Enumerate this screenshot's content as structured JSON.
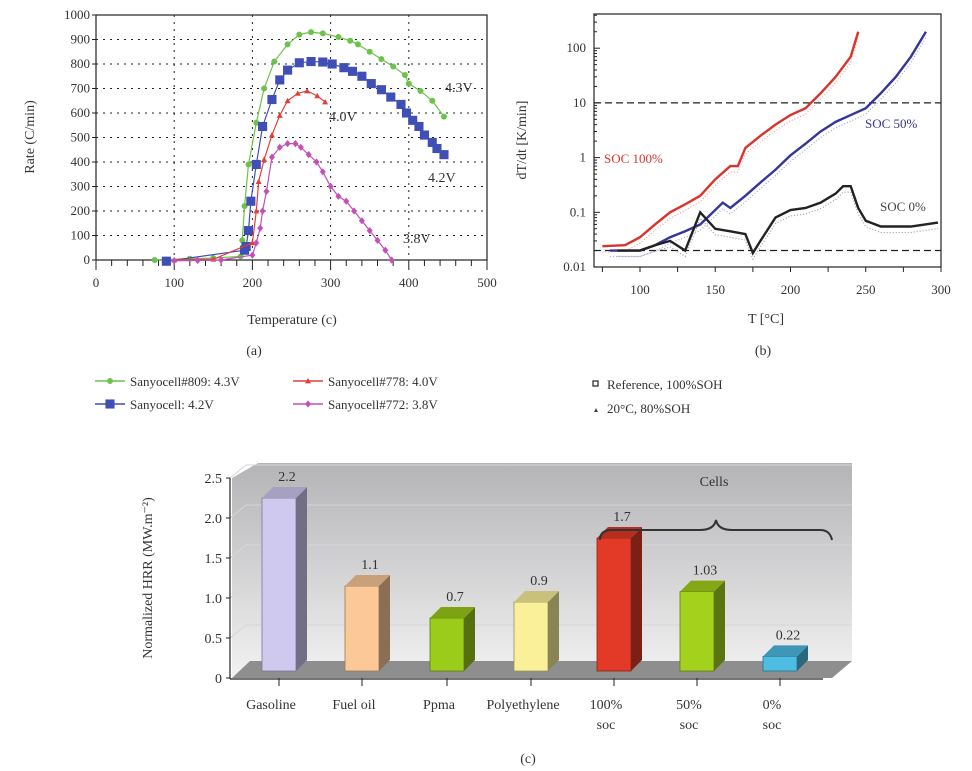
{
  "chart_data": [
    {
      "type": "line",
      "panel": "(a)",
      "xlabel": "Temperature (c)",
      "ylabel": "Rate (C/min)",
      "xlim": [
        0,
        500
      ],
      "ylim": [
        0,
        1000
      ],
      "xticks": [
        0,
        100,
        200,
        300,
        400,
        500
      ],
      "yticks": [
        0,
        100,
        200,
        300,
        400,
        500,
        600,
        700,
        800,
        900,
        1000
      ],
      "grid": true,
      "legend_position": "below",
      "series": [
        {
          "name": "Sanyocell#809: 4.3V",
          "label": "4.3V",
          "color": "#6cc24a",
          "marker": "circle",
          "x": [
            75,
            90,
            120,
            150,
            185,
            187,
            190,
            195,
            205,
            215,
            228,
            245,
            260,
            275,
            290,
            310,
            325,
            335,
            350,
            365,
            380,
            395,
            400,
            415,
            430,
            445
          ],
          "y": [
            0,
            2,
            5,
            8,
            15,
            80,
            220,
            390,
            560,
            700,
            810,
            880,
            920,
            930,
            925,
            910,
            895,
            880,
            850,
            820,
            790,
            755,
            720,
            690,
            650,
            585
          ]
        },
        {
          "name": "Sanyocell: 4.2V",
          "label": "4.2V",
          "color": "#3f4fb5",
          "marker": "square",
          "x": [
            90,
            190,
            192,
            195,
            198,
            205,
            213,
            225,
            235,
            245,
            260,
            275,
            290,
            302,
            317,
            328,
            340,
            352,
            365,
            377,
            390,
            397,
            405,
            413,
            420,
            430,
            436,
            445
          ],
          "y": [
            -5,
            40,
            55,
            120,
            240,
            390,
            545,
            655,
            735,
            775,
            805,
            810,
            808,
            800,
            785,
            770,
            750,
            720,
            695,
            665,
            635,
            600,
            570,
            545,
            510,
            480,
            455,
            430
          ]
        },
        {
          "name": "Sanyocell#778: 4.0V",
          "label": "4.0V",
          "color": "#e0403a",
          "marker": "triangle",
          "x": [
            100,
            150,
            200,
            205,
            208,
            215,
            225,
            235,
            245,
            258,
            270,
            283,
            293
          ],
          "y": [
            0,
            3,
            70,
            200,
            320,
            410,
            510,
            590,
            650,
            680,
            690,
            670,
            645
          ]
        },
        {
          "name": "Sanyocell#772: 3.8V",
          "label": "3.8V",
          "color": "#c350b8",
          "marker": "diamond",
          "x": [
            100,
            130,
            160,
            200,
            205,
            210,
            213,
            218,
            225,
            235,
            245,
            255,
            262,
            272,
            282,
            290,
            300,
            310,
            320,
            330,
            340,
            350,
            360,
            370,
            378
          ],
          "y": [
            -3,
            -2,
            0,
            20,
            70,
            130,
            200,
            280,
            420,
            460,
            475,
            475,
            460,
            430,
            400,
            360,
            300,
            260,
            240,
            200,
            160,
            120,
            80,
            40,
            0
          ]
        }
      ]
    },
    {
      "type": "scatter",
      "panel": "(b)",
      "xlabel": "T [°C]",
      "ylabel": "dT/dt [K/min]",
      "xlim": [
        70,
        300
      ],
      "ylim": [
        0.01,
        300
      ],
      "yscale": "log",
      "xticks": [
        100,
        150,
        200,
        250,
        300
      ],
      "yticks": [
        "0.01",
        "0.1",
        "1",
        "10",
        "100"
      ],
      "reference_lines": [
        10,
        0.02
      ],
      "legend_position": "below",
      "legend": [
        {
          "name": "Reference, 100%SOH",
          "marker": "square"
        },
        {
          "name": "20°C, 80%SOH",
          "marker": "small-triangle"
        }
      ],
      "series": [
        {
          "name": "SOC 100%",
          "color": "#d9342b",
          "x": [
            75,
            90,
            100,
            110,
            120,
            130,
            140,
            150,
            160,
            165,
            170,
            180,
            190,
            200,
            210,
            220,
            230,
            240,
            245
          ],
          "y": [
            0.024,
            0.025,
            0.035,
            0.06,
            0.1,
            0.14,
            0.2,
            0.4,
            0.7,
            0.7,
            1.5,
            2.5,
            4,
            6,
            8,
            15,
            30,
            70,
            200
          ]
        },
        {
          "name": "SOC 50%",
          "color": "#35359a",
          "x": [
            80,
            100,
            110,
            120,
            130,
            140,
            150,
            155,
            160,
            170,
            180,
            190,
            200,
            210,
            220,
            230,
            240,
            250,
            260,
            270,
            280,
            290
          ],
          "y": [
            0.02,
            0.02,
            0.025,
            0.035,
            0.045,
            0.06,
            0.11,
            0.15,
            0.12,
            0.2,
            0.35,
            0.6,
            1.1,
            1.8,
            3,
            4.5,
            6,
            8,
            15,
            30,
            70,
            200
          ]
        },
        {
          "name": "SOC 0%",
          "color": "#222222",
          "x": [
            85,
            100,
            110,
            120,
            130,
            140,
            150,
            160,
            170,
            175,
            180,
            190,
            200,
            210,
            220,
            230,
            235,
            240,
            245,
            250,
            260,
            280,
            298
          ],
          "y": [
            0.02,
            0.02,
            0.025,
            0.03,
            0.02,
            0.1,
            0.05,
            0.045,
            0.04,
            0.018,
            0.03,
            0.08,
            0.11,
            0.12,
            0.15,
            0.22,
            0.3,
            0.3,
            0.12,
            0.07,
            0.055,
            0.055,
            0.065
          ]
        }
      ]
    },
    {
      "type": "bar",
      "panel": "(c)",
      "ylabel": "Normalized HRR (MW.m⁻²)",
      "ylim": [
        0,
        2.5
      ],
      "yticks": [
        "0",
        "0.5",
        "1.0",
        "1.5",
        "2.0",
        "2.5"
      ],
      "categories": [
        [
          "Gasoline"
        ],
        [
          "Fuel oil"
        ],
        [
          "Ppma"
        ],
        [
          "Polyethylene"
        ],
        [
          "100%",
          "soc"
        ],
        [
          "50%",
          "soc"
        ],
        [
          "0%",
          "soc"
        ]
      ],
      "values": [
        2.2,
        1.1,
        0.7,
        0.9,
        1.7,
        1.03,
        0.22
      ],
      "value_labels": [
        "2.2",
        "1.1",
        "0.7",
        "0.9",
        "1.7",
        "1.03",
        "0.22"
      ],
      "colors": [
        "#cfc9f0",
        "#fcc898",
        "#9ccc1a",
        "#faf09a",
        "#e23a26",
        "#a4d21c",
        "#4dbde3"
      ],
      "annotation": "Cells"
    }
  ]
}
